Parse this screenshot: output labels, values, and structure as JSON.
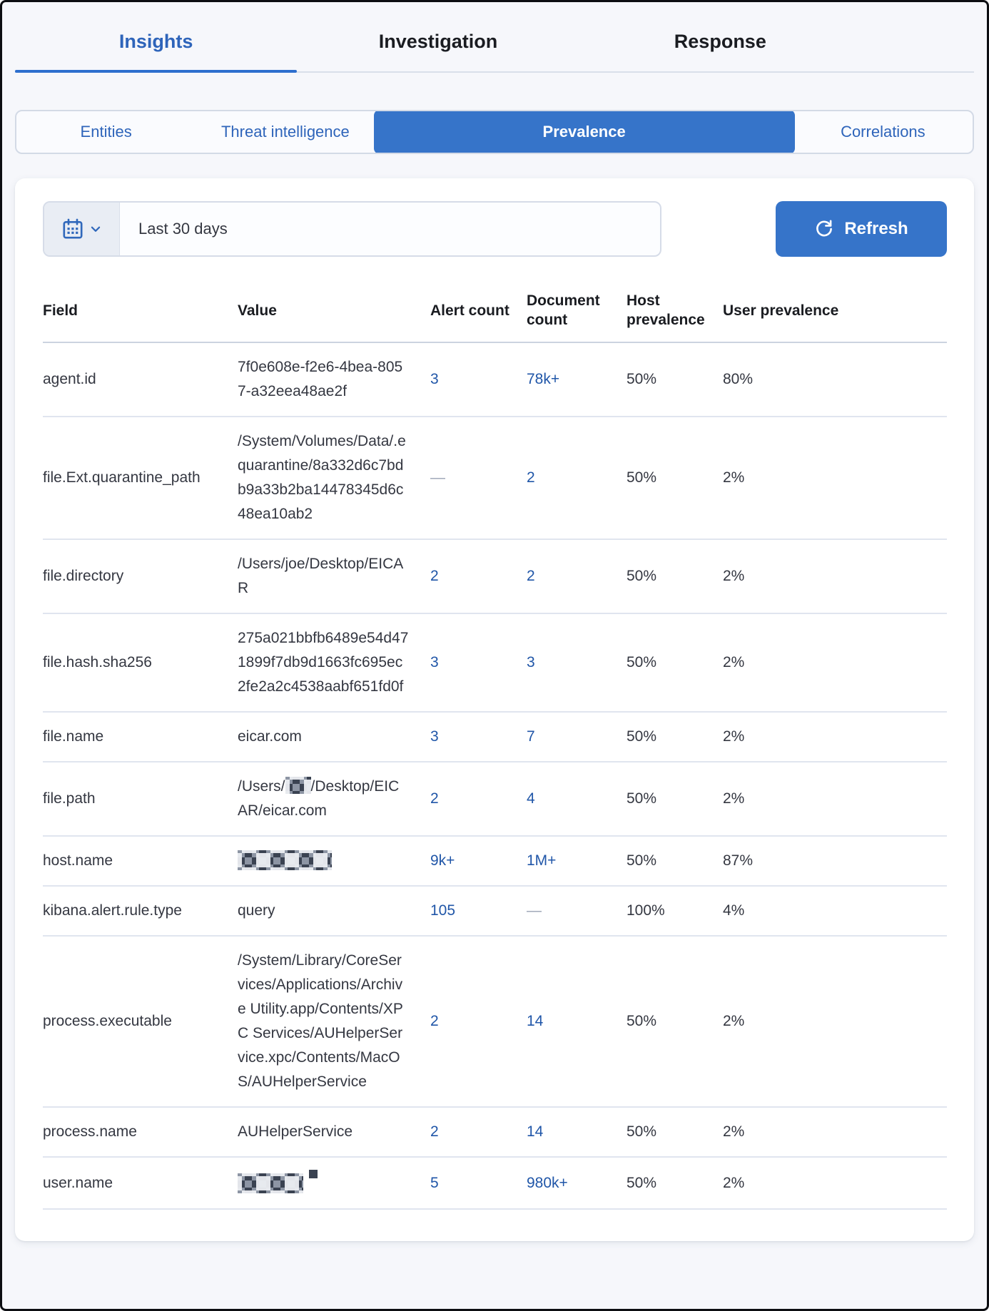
{
  "tabs": [
    {
      "label": "Insights",
      "active": true
    },
    {
      "label": "Investigation",
      "active": false
    },
    {
      "label": "Response",
      "active": false
    }
  ],
  "subtabs": [
    {
      "label": "Entities",
      "selected": false
    },
    {
      "label": "Threat intelligence",
      "selected": false
    },
    {
      "label": "Prevalence",
      "selected": true
    },
    {
      "label": "Correlations",
      "selected": false
    }
  ],
  "toolbar": {
    "date_range": "Last 30 days",
    "refresh_label": "Refresh"
  },
  "table": {
    "columns": [
      "Field",
      "Value",
      "Alert count",
      "Document count",
      "Host prevalence",
      "User prevalence"
    ],
    "rows": [
      {
        "field": "agent.id",
        "value": "7f0e608e-f2e6-4bea-8057-a32eea48ae2f",
        "alert_count": {
          "text": "3",
          "link": true
        },
        "document_count": {
          "text": "78k+",
          "link": true
        },
        "host_prevalence": "50%",
        "user_prevalence": "80%"
      },
      {
        "field": "file.Ext.quarantine_path",
        "value": "/System/Volumes/Data/.equarantine/8a332d6c7bdb9a33b2ba14478345d6c48ea10ab2",
        "alert_count": {
          "text": "—",
          "link": false
        },
        "document_count": {
          "text": "2",
          "link": true
        },
        "host_prevalence": "50%",
        "user_prevalence": "2%"
      },
      {
        "field": "file.directory",
        "value": "/Users/joe/Desktop/EICAR",
        "alert_count": {
          "text": "2",
          "link": true
        },
        "document_count": {
          "text": "2",
          "link": true
        },
        "host_prevalence": "50%",
        "user_prevalence": "2%"
      },
      {
        "field": "file.hash.sha256",
        "value": "275a021bbfb6489e54d471899f7db9d1663fc695ec2fe2a2c4538aabf651fd0f",
        "alert_count": {
          "text": "3",
          "link": true
        },
        "document_count": {
          "text": "3",
          "link": true
        },
        "host_prevalence": "50%",
        "user_prevalence": "2%"
      },
      {
        "field": "file.name",
        "value": "eicar.com",
        "alert_count": {
          "text": "3",
          "link": true
        },
        "document_count": {
          "text": "7",
          "link": true
        },
        "host_prevalence": "50%",
        "user_prevalence": "2%"
      },
      {
        "field": "file.path",
        "value_redacted": true,
        "redact_size": "redact-sm",
        "value_prefix": "/Users/",
        "value_suffix": "/Desktop/EICAR/eicar.com",
        "alert_count": {
          "text": "2",
          "link": true
        },
        "document_count": {
          "text": "4",
          "link": true
        },
        "host_prevalence": "50%",
        "user_prevalence": "2%"
      },
      {
        "field": "host.name",
        "value_redacted": true,
        "redact_size": "redact-lg",
        "alert_count": {
          "text": "9k+",
          "link": true
        },
        "document_count": {
          "text": "1M+",
          "link": true
        },
        "host_prevalence": "50%",
        "user_prevalence": "87%"
      },
      {
        "field": "kibana.alert.rule.type",
        "value": "query",
        "alert_count": {
          "text": "105",
          "link": true
        },
        "document_count": {
          "text": "—",
          "link": false
        },
        "host_prevalence": "100%",
        "user_prevalence": "4%"
      },
      {
        "field": "process.executable",
        "value": "/System/Library/CoreServices/Applications/Archive Utility.app/Contents/XPC Services/AUHelperService.xpc/Contents/MacOS/AUHelperService",
        "alert_count": {
          "text": "2",
          "link": true
        },
        "document_count": {
          "text": "14",
          "link": true
        },
        "host_prevalence": "50%",
        "user_prevalence": "2%"
      },
      {
        "field": "process.name",
        "value": "AUHelperService",
        "alert_count": {
          "text": "2",
          "link": true
        },
        "document_count": {
          "text": "14",
          "link": true
        },
        "host_prevalence": "50%",
        "user_prevalence": "2%"
      },
      {
        "field": "user.name",
        "value_redacted": true,
        "redact_size": "redact-md",
        "redact_tick": true,
        "alert_count": {
          "text": "5",
          "link": true
        },
        "document_count": {
          "text": "980k+",
          "link": true
        },
        "host_prevalence": "50%",
        "user_prevalence": "2%"
      }
    ]
  },
  "colors": {
    "accent_blue": "#3674c9",
    "tab_active_blue": "#2e64ba",
    "link_blue": "#2056a8",
    "text_dark": "#343741",
    "divider": "#d9dfea",
    "background": "#f6f7fb"
  }
}
